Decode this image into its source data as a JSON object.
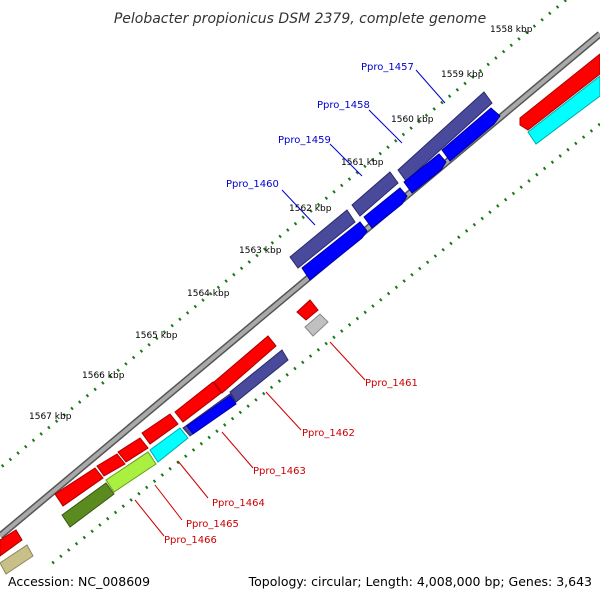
{
  "title": "Pelobacter propionicus DSM 2379, complete genome",
  "footer": {
    "accession": "Accession: NC_008609",
    "topology": "Topology: circular; Length: 4,008,000 bp; Genes: 3,643"
  },
  "ticks": [
    "1558 kbp",
    "1559 kbp",
    "1560 kbp",
    "1561 kbp",
    "1562 kbp",
    "1563 kbp",
    "1564 kbp",
    "1565 kbp",
    "1566 kbp",
    "1567 kbp"
  ],
  "labels_top": [
    "Ppro_1457",
    "Ppro_1458",
    "Ppro_1459",
    "Ppro_1460"
  ],
  "labels_bottom": [
    "Ppro_1461",
    "Ppro_1462",
    "Ppro_1463",
    "Ppro_1464",
    "Ppro_1465",
    "Ppro_1466"
  ],
  "colors": {
    "backbone": "#8a8a8a",
    "forward_cds": "#ff0000",
    "reverse_cds": "#0000ff",
    "navy": "#4a4a9c",
    "cyan": "#00ffff",
    "lime": "#aaf040",
    "olive": "#5a8a20",
    "khaki": "#c8c088",
    "grey": "#c0c0c0",
    "tick": "#1a7a1a",
    "label_top": "#0000cc",
    "label_bottom": "#cc0000"
  }
}
